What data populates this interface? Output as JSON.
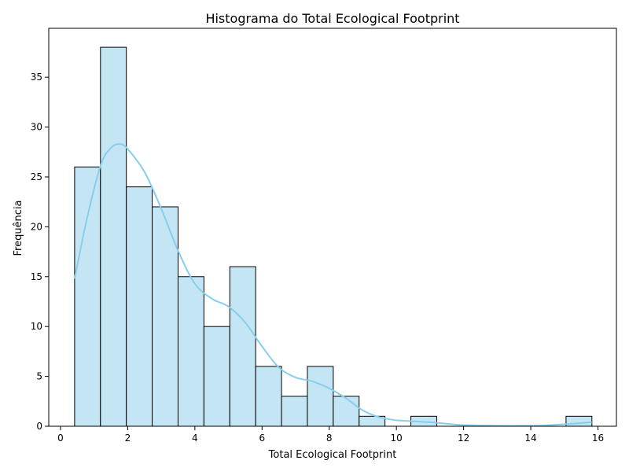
{
  "chart_data": {
    "type": "bar",
    "subtype": "histogram with density curve",
    "title": "Histograma do Total Ecological Footprint",
    "xlabel": "Total Ecological Footprint",
    "ylabel": "Frequência",
    "xlim": [
      -0.35,
      16.55
    ],
    "ylim": [
      0,
      39.9
    ],
    "xticks": [
      0,
      2,
      4,
      6,
      8,
      10,
      12,
      14,
      16
    ],
    "yticks": [
      0,
      5,
      10,
      15,
      20,
      25,
      30,
      35
    ],
    "grid": false,
    "bins": [
      {
        "x0": 0.42,
        "x1": 1.19,
        "count": 26
      },
      {
        "x0": 1.19,
        "x1": 1.96,
        "count": 38
      },
      {
        "x0": 1.96,
        "x1": 2.73,
        "count": 24
      },
      {
        "x0": 2.73,
        "x1": 3.5,
        "count": 22
      },
      {
        "x0": 3.5,
        "x1": 4.27,
        "count": 15
      },
      {
        "x0": 4.27,
        "x1": 5.04,
        "count": 10
      },
      {
        "x0": 5.04,
        "x1": 5.81,
        "count": 16
      },
      {
        "x0": 5.81,
        "x1": 6.58,
        "count": 6
      },
      {
        "x0": 6.58,
        "x1": 7.35,
        "count": 3
      },
      {
        "x0": 7.35,
        "x1": 8.12,
        "count": 6
      },
      {
        "x0": 8.12,
        "x1": 8.89,
        "count": 3
      },
      {
        "x0": 8.89,
        "x1": 9.66,
        "count": 1
      },
      {
        "x0": 9.66,
        "x1": 10.43,
        "count": 0
      },
      {
        "x0": 10.43,
        "x1": 11.2,
        "count": 1
      },
      {
        "x0": 11.2,
        "x1": 11.97,
        "count": 0
      },
      {
        "x0": 11.97,
        "x1": 12.74,
        "count": 0
      },
      {
        "x0": 12.74,
        "x1": 13.51,
        "count": 0
      },
      {
        "x0": 13.51,
        "x1": 14.28,
        "count": 0
      },
      {
        "x0": 14.28,
        "x1": 15.05,
        "count": 0
      },
      {
        "x0": 15.05,
        "x1": 15.82,
        "count": 1
      }
    ],
    "kde": {
      "x": [
        0.42,
        0.8,
        1.2,
        1.5,
        1.75,
        2.0,
        2.5,
        3.0,
        3.5,
        4.0,
        4.5,
        5.0,
        5.5,
        6.0,
        6.5,
        7.0,
        7.5,
        8.0,
        8.5,
        9.0,
        9.5,
        10.0,
        10.5,
        11.0,
        11.5,
        12.0,
        13.0,
        14.0,
        14.5,
        15.0,
        15.4,
        15.82
      ],
      "y": [
        14.8,
        21.0,
        26.2,
        27.9,
        28.3,
        27.8,
        25.5,
        21.8,
        17.6,
        14.3,
        12.8,
        12.0,
        10.4,
        8.0,
        5.9,
        4.9,
        4.5,
        3.8,
        2.8,
        1.6,
        0.9,
        0.6,
        0.5,
        0.4,
        0.25,
        0.12,
        0.05,
        0.05,
        0.1,
        0.2,
        0.3,
        0.4
      ]
    },
    "colors": {
      "bar_fill": "#c4e5f4",
      "bar_edge": "#000000",
      "kde_line": "#87ceeb",
      "axis": "#000000",
      "background": "#ffffff"
    }
  }
}
